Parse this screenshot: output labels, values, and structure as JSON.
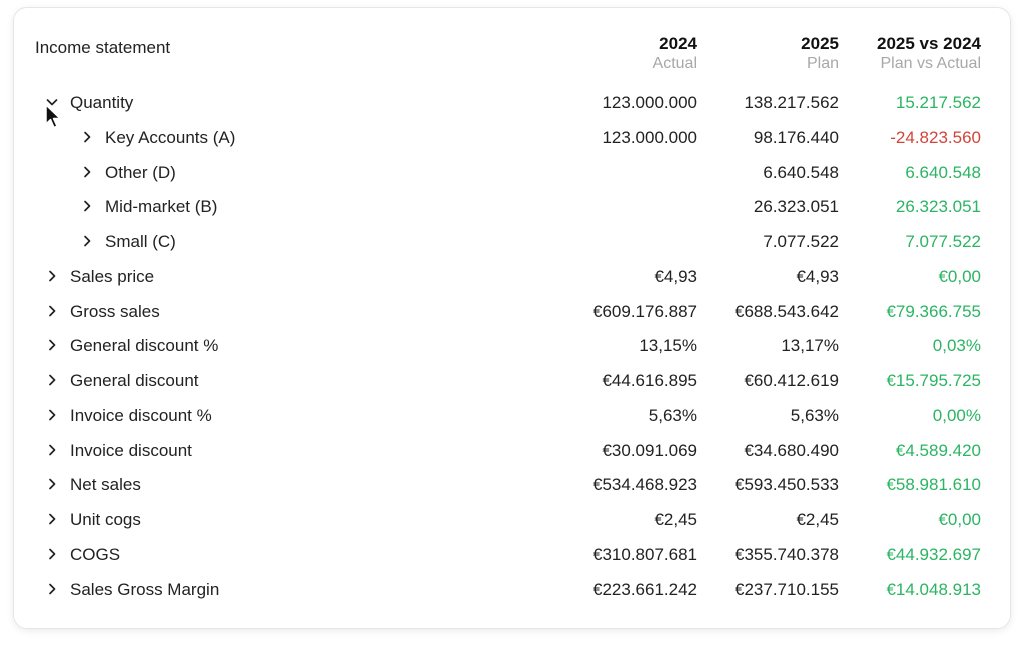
{
  "header": {
    "title": "Income statement",
    "columns": [
      {
        "year": "2024",
        "sub": "Actual"
      },
      {
        "year": "2025",
        "sub": "Plan"
      },
      {
        "year": "2025 vs 2024",
        "sub": "Plan vs Actual"
      }
    ]
  },
  "rows": [
    {
      "label": "Quantity",
      "expanded": true,
      "level": 0,
      "v1": "123.000.000",
      "v2": "138.217.562",
      "v3": "15.217.562",
      "v3_status": "positive"
    },
    {
      "label": "Key Accounts (A)",
      "expanded": false,
      "level": 1,
      "v1": "123.000.000",
      "v2": "98.176.440",
      "v3": "-24.823.560",
      "v3_status": "negative"
    },
    {
      "label": "Other (D)",
      "expanded": false,
      "level": 1,
      "v1": "",
      "v2": "6.640.548",
      "v3": "6.640.548",
      "v3_status": "positive"
    },
    {
      "label": "Mid-market (B)",
      "expanded": false,
      "level": 1,
      "v1": "",
      "v2": "26.323.051",
      "v3": "26.323.051",
      "v3_status": "positive"
    },
    {
      "label": "Small (C)",
      "expanded": false,
      "level": 1,
      "v1": "",
      "v2": "7.077.522",
      "v3": "7.077.522",
      "v3_status": "positive"
    },
    {
      "label": "Sales price",
      "expanded": false,
      "level": 0,
      "v1": "€4,93",
      "v2": "€4,93",
      "v3": "€0,00",
      "v3_status": "positive"
    },
    {
      "label": "Gross sales",
      "expanded": false,
      "level": 0,
      "v1": "€609.176.887",
      "v2": "€688.543.642",
      "v3": "€79.366.755",
      "v3_status": "positive"
    },
    {
      "label": "General discount %",
      "expanded": false,
      "level": 0,
      "v1": "13,15%",
      "v2": "13,17%",
      "v3": "0,03%",
      "v3_status": "positive"
    },
    {
      "label": "General discount",
      "expanded": false,
      "level": 0,
      "v1": "€44.616.895",
      "v2": "€60.412.619",
      "v3": "€15.795.725",
      "v3_status": "positive"
    },
    {
      "label": "Invoice discount %",
      "expanded": false,
      "level": 0,
      "v1": "5,63%",
      "v2": "5,63%",
      "v3": "0,00%",
      "v3_status": "positive"
    },
    {
      "label": "Invoice discount",
      "expanded": false,
      "level": 0,
      "v1": "€30.091.069",
      "v2": "€34.680.490",
      "v3": "€4.589.420",
      "v3_status": "positive"
    },
    {
      "label": "Net sales",
      "expanded": false,
      "level": 0,
      "v1": "€534.468.923",
      "v2": "€593.450.533",
      "v3": "€58.981.610",
      "v3_status": "positive"
    },
    {
      "label": "Unit cogs",
      "expanded": false,
      "level": 0,
      "v1": "€2,45",
      "v2": "€2,45",
      "v3": "€0,00",
      "v3_status": "positive"
    },
    {
      "label": "COGS",
      "expanded": false,
      "level": 0,
      "v1": "€310.807.681",
      "v2": "€355.740.378",
      "v3": "€44.932.697",
      "v3_status": "positive"
    },
    {
      "label": "Sales Gross Margin",
      "expanded": false,
      "level": 0,
      "v1": "€223.661.242",
      "v2": "€237.710.155",
      "v3": "€14.048.913",
      "v3_status": "positive"
    }
  ]
}
